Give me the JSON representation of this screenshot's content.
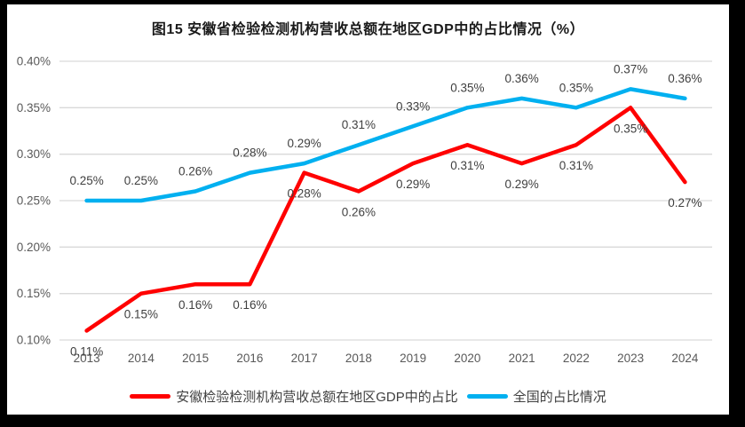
{
  "title": "图15 安徽省检验检测机构营收总额在地区GDP中的占比情况（%）",
  "chart_data": {
    "type": "line",
    "title": "图15 安徽省检验检测机构营收总额在地区GDP中的占比情况（%）",
    "categories": [
      "2013",
      "2014",
      "2015",
      "2016",
      "2017",
      "2018",
      "2019",
      "2020",
      "2021",
      "2022",
      "2023",
      "2024"
    ],
    "series": [
      {
        "name": "安徽检验检测机构营收总额在地区GDP中的占比",
        "color": "#FF0000",
        "values": [
          0.11,
          0.15,
          0.16,
          0.16,
          0.28,
          0.26,
          0.29,
          0.31,
          0.29,
          0.31,
          0.35,
          0.27
        ],
        "data_labels": [
          "0.11%",
          "0.15%",
          "0.16%",
          "0.16%",
          "0.28%",
          "0.26%",
          "0.29%",
          "0.31%",
          "0.29%",
          "0.31%",
          "0.35%",
          "0.27%"
        ],
        "label_side": "below"
      },
      {
        "name": "全国的占比情况",
        "color": "#00B0F0",
        "values": [
          0.25,
          0.25,
          0.26,
          0.28,
          0.29,
          0.31,
          0.33,
          0.35,
          0.36,
          0.35,
          0.37,
          0.36
        ],
        "data_labels": [
          "0.25%",
          "0.25%",
          "0.26%",
          "0.28%",
          "0.29%",
          "0.31%",
          "0.33%",
          "0.35%",
          "0.36%",
          "0.35%",
          "0.37%",
          "0.36%"
        ],
        "label_side": "above"
      }
    ],
    "xlabel": "",
    "ylabel": "",
    "ylim": [
      0.1,
      0.4
    ],
    "ytick_step": 0.05,
    "ytick_labels": [
      "0.10%",
      "0.15%",
      "0.20%",
      "0.25%",
      "0.30%",
      "0.35%",
      "0.40%"
    ],
    "grid": true,
    "legend_position": "bottom",
    "unit": "%"
  },
  "colors": {
    "frame": "#000000",
    "background": "#FFFFFF",
    "gridline": "#D9D9D9",
    "axis_line": "#D9D9D9",
    "tick_text": "#595959",
    "data_label_text": "#404040",
    "title_text": "#1A1A1A"
  }
}
